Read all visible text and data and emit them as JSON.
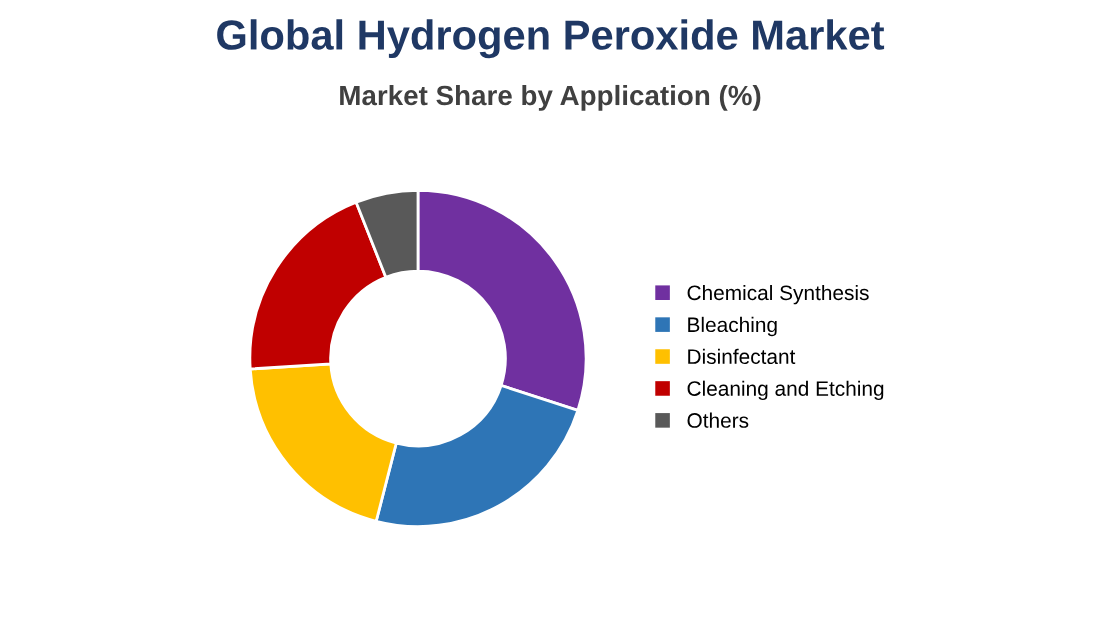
{
  "chart_data": {
    "type": "donut",
    "title": "Global Hydrogen Peroxide Market",
    "subtitle": "Market Share by Application (%)",
    "categories": [
      "Chemical Synthesis",
      "Bleaching",
      "Disinfectant",
      "Cleaning and Etching",
      "Others"
    ],
    "values": [
      30,
      24,
      20,
      20,
      6
    ],
    "colors": [
      "#7030a0",
      "#2e75b6",
      "#ffc000",
      "#c00000",
      "#595959"
    ],
    "legend": "right"
  }
}
